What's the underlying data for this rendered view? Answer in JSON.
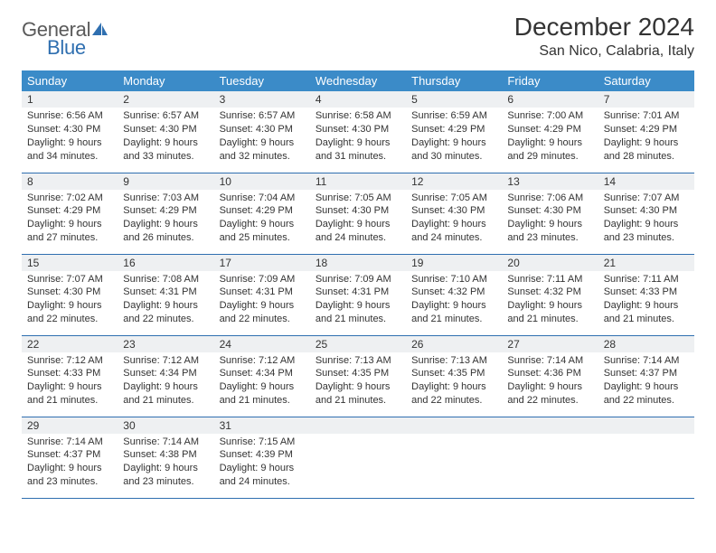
{
  "colors": {
    "header_bg": "#3b8bc8",
    "cell_border": "#2f6fb0",
    "daynum_bg": "#eef0f2",
    "text": "#333333",
    "logo_general": "#5a5a5a",
    "logo_blue": "#2f6fb0",
    "page_bg": "#ffffff"
  },
  "logo": {
    "general": "General",
    "blue": "Blue"
  },
  "title": "December 2024",
  "location": "San Nico, Calabria, Italy",
  "weekdays": [
    "Sunday",
    "Monday",
    "Tuesday",
    "Wednesday",
    "Thursday",
    "Friday",
    "Saturday"
  ],
  "weeks": [
    [
      {
        "day": "1",
        "sunrise": "Sunrise: 6:56 AM",
        "sunset": "Sunset: 4:30 PM",
        "daylight1": "Daylight: 9 hours",
        "daylight2": "and 34 minutes."
      },
      {
        "day": "2",
        "sunrise": "Sunrise: 6:57 AM",
        "sunset": "Sunset: 4:30 PM",
        "daylight1": "Daylight: 9 hours",
        "daylight2": "and 33 minutes."
      },
      {
        "day": "3",
        "sunrise": "Sunrise: 6:57 AM",
        "sunset": "Sunset: 4:30 PM",
        "daylight1": "Daylight: 9 hours",
        "daylight2": "and 32 minutes."
      },
      {
        "day": "4",
        "sunrise": "Sunrise: 6:58 AM",
        "sunset": "Sunset: 4:30 PM",
        "daylight1": "Daylight: 9 hours",
        "daylight2": "and 31 minutes."
      },
      {
        "day": "5",
        "sunrise": "Sunrise: 6:59 AM",
        "sunset": "Sunset: 4:29 PM",
        "daylight1": "Daylight: 9 hours",
        "daylight2": "and 30 minutes."
      },
      {
        "day": "6",
        "sunrise": "Sunrise: 7:00 AM",
        "sunset": "Sunset: 4:29 PM",
        "daylight1": "Daylight: 9 hours",
        "daylight2": "and 29 minutes."
      },
      {
        "day": "7",
        "sunrise": "Sunrise: 7:01 AM",
        "sunset": "Sunset: 4:29 PM",
        "daylight1": "Daylight: 9 hours",
        "daylight2": "and 28 minutes."
      }
    ],
    [
      {
        "day": "8",
        "sunrise": "Sunrise: 7:02 AM",
        "sunset": "Sunset: 4:29 PM",
        "daylight1": "Daylight: 9 hours",
        "daylight2": "and 27 minutes."
      },
      {
        "day": "9",
        "sunrise": "Sunrise: 7:03 AM",
        "sunset": "Sunset: 4:29 PM",
        "daylight1": "Daylight: 9 hours",
        "daylight2": "and 26 minutes."
      },
      {
        "day": "10",
        "sunrise": "Sunrise: 7:04 AM",
        "sunset": "Sunset: 4:29 PM",
        "daylight1": "Daylight: 9 hours",
        "daylight2": "and 25 minutes."
      },
      {
        "day": "11",
        "sunrise": "Sunrise: 7:05 AM",
        "sunset": "Sunset: 4:30 PM",
        "daylight1": "Daylight: 9 hours",
        "daylight2": "and 24 minutes."
      },
      {
        "day": "12",
        "sunrise": "Sunrise: 7:05 AM",
        "sunset": "Sunset: 4:30 PM",
        "daylight1": "Daylight: 9 hours",
        "daylight2": "and 24 minutes."
      },
      {
        "day": "13",
        "sunrise": "Sunrise: 7:06 AM",
        "sunset": "Sunset: 4:30 PM",
        "daylight1": "Daylight: 9 hours",
        "daylight2": "and 23 minutes."
      },
      {
        "day": "14",
        "sunrise": "Sunrise: 7:07 AM",
        "sunset": "Sunset: 4:30 PM",
        "daylight1": "Daylight: 9 hours",
        "daylight2": "and 23 minutes."
      }
    ],
    [
      {
        "day": "15",
        "sunrise": "Sunrise: 7:07 AM",
        "sunset": "Sunset: 4:30 PM",
        "daylight1": "Daylight: 9 hours",
        "daylight2": "and 22 minutes."
      },
      {
        "day": "16",
        "sunrise": "Sunrise: 7:08 AM",
        "sunset": "Sunset: 4:31 PM",
        "daylight1": "Daylight: 9 hours",
        "daylight2": "and 22 minutes."
      },
      {
        "day": "17",
        "sunrise": "Sunrise: 7:09 AM",
        "sunset": "Sunset: 4:31 PM",
        "daylight1": "Daylight: 9 hours",
        "daylight2": "and 22 minutes."
      },
      {
        "day": "18",
        "sunrise": "Sunrise: 7:09 AM",
        "sunset": "Sunset: 4:31 PM",
        "daylight1": "Daylight: 9 hours",
        "daylight2": "and 21 minutes."
      },
      {
        "day": "19",
        "sunrise": "Sunrise: 7:10 AM",
        "sunset": "Sunset: 4:32 PM",
        "daylight1": "Daylight: 9 hours",
        "daylight2": "and 21 minutes."
      },
      {
        "day": "20",
        "sunrise": "Sunrise: 7:11 AM",
        "sunset": "Sunset: 4:32 PM",
        "daylight1": "Daylight: 9 hours",
        "daylight2": "and 21 minutes."
      },
      {
        "day": "21",
        "sunrise": "Sunrise: 7:11 AM",
        "sunset": "Sunset: 4:33 PM",
        "daylight1": "Daylight: 9 hours",
        "daylight2": "and 21 minutes."
      }
    ],
    [
      {
        "day": "22",
        "sunrise": "Sunrise: 7:12 AM",
        "sunset": "Sunset: 4:33 PM",
        "daylight1": "Daylight: 9 hours",
        "daylight2": "and 21 minutes."
      },
      {
        "day": "23",
        "sunrise": "Sunrise: 7:12 AM",
        "sunset": "Sunset: 4:34 PM",
        "daylight1": "Daylight: 9 hours",
        "daylight2": "and 21 minutes."
      },
      {
        "day": "24",
        "sunrise": "Sunrise: 7:12 AM",
        "sunset": "Sunset: 4:34 PM",
        "daylight1": "Daylight: 9 hours",
        "daylight2": "and 21 minutes."
      },
      {
        "day": "25",
        "sunrise": "Sunrise: 7:13 AM",
        "sunset": "Sunset: 4:35 PM",
        "daylight1": "Daylight: 9 hours",
        "daylight2": "and 21 minutes."
      },
      {
        "day": "26",
        "sunrise": "Sunrise: 7:13 AM",
        "sunset": "Sunset: 4:35 PM",
        "daylight1": "Daylight: 9 hours",
        "daylight2": "and 22 minutes."
      },
      {
        "day": "27",
        "sunrise": "Sunrise: 7:14 AM",
        "sunset": "Sunset: 4:36 PM",
        "daylight1": "Daylight: 9 hours",
        "daylight2": "and 22 minutes."
      },
      {
        "day": "28",
        "sunrise": "Sunrise: 7:14 AM",
        "sunset": "Sunset: 4:37 PM",
        "daylight1": "Daylight: 9 hours",
        "daylight2": "and 22 minutes."
      }
    ],
    [
      {
        "day": "29",
        "sunrise": "Sunrise: 7:14 AM",
        "sunset": "Sunset: 4:37 PM",
        "daylight1": "Daylight: 9 hours",
        "daylight2": "and 23 minutes."
      },
      {
        "day": "30",
        "sunrise": "Sunrise: 7:14 AM",
        "sunset": "Sunset: 4:38 PM",
        "daylight1": "Daylight: 9 hours",
        "daylight2": "and 23 minutes."
      },
      {
        "day": "31",
        "sunrise": "Sunrise: 7:15 AM",
        "sunset": "Sunset: 4:39 PM",
        "daylight1": "Daylight: 9 hours",
        "daylight2": "and 24 minutes."
      },
      null,
      null,
      null,
      null
    ]
  ]
}
